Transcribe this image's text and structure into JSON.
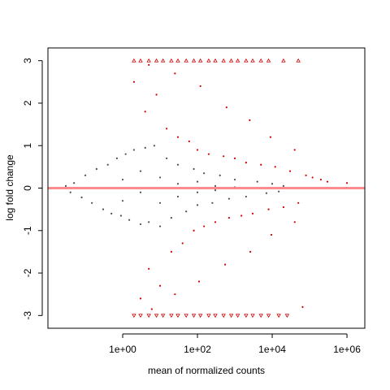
{
  "chart_data": {
    "type": "scatter",
    "title": "",
    "xlabel": "mean of normalized counts",
    "ylabel": "log fold change",
    "x_scale": "log10",
    "xlim": [
      0.01,
      3000000
    ],
    "ylim": [
      -3.3,
      3.3
    ],
    "x_ticks": [
      1,
      100,
      10000,
      1000000
    ],
    "x_tick_labels": [
      "1e+00",
      "1e+02",
      "1e+04",
      "1e+06"
    ],
    "y_ticks": [
      -3,
      -2,
      -1,
      0,
      1,
      2,
      3
    ],
    "y_tick_labels": [
      "-3",
      "-2",
      "-1",
      "0",
      "1",
      "2",
      "3"
    ],
    "grid": false,
    "legend": "none",
    "clip_value": 3,
    "reference_line": {
      "y": 0,
      "color": "#ff8080"
    },
    "colors": {
      "not_significant": "#4d4d4d",
      "significant": "#cc0000",
      "reference_line": "#ff8080"
    },
    "series": [
      {
        "group": "not_significant",
        "marker": "point",
        "points": [
          [
            0.03,
            0.05
          ],
          [
            0.04,
            -0.1
          ],
          [
            0.05,
            0.12
          ],
          [
            0.08,
            -0.22
          ],
          [
            0.1,
            0.3
          ],
          [
            0.15,
            -0.35
          ],
          [
            0.2,
            0.45
          ],
          [
            0.3,
            -0.5
          ],
          [
            0.4,
            0.55
          ],
          [
            0.5,
            -0.6
          ],
          [
            0.7,
            0.7
          ],
          [
            0.9,
            -0.65
          ],
          [
            1.2,
            0.8
          ],
          [
            1.5,
            -0.75
          ],
          [
            2,
            0.9
          ],
          [
            3,
            -0.85
          ],
          [
            4,
            0.95
          ],
          [
            5,
            -0.8
          ],
          [
            7,
            1.0
          ],
          [
            10,
            -0.9
          ],
          [
            15,
            0.7
          ],
          [
            20,
            -0.7
          ],
          [
            30,
            0.55
          ],
          [
            50,
            -0.55
          ],
          [
            80,
            0.45
          ],
          [
            100,
            -0.4
          ],
          [
            150,
            0.35
          ],
          [
            250,
            -0.35
          ],
          [
            400,
            0.3
          ],
          [
            700,
            -0.25
          ],
          [
            1000,
            0.2
          ],
          [
            2000,
            -0.2
          ],
          [
            4000,
            0.15
          ],
          [
            7000,
            -0.12
          ],
          [
            10000,
            0.1
          ],
          [
            15000,
            -0.08
          ],
          [
            20000,
            0.05
          ],
          [
            1,
            0.2
          ],
          [
            1,
            -0.3
          ],
          [
            3,
            0.4
          ],
          [
            3,
            -0.1
          ],
          [
            10,
            0.25
          ],
          [
            10,
            -0.35
          ],
          [
            30,
            0.1
          ],
          [
            30,
            -0.2
          ],
          [
            100,
            0.15
          ],
          [
            100,
            -0.1
          ],
          [
            300,
            0.05
          ],
          [
            300,
            -0.05
          ],
          [
            1000,
            0.02
          ]
        ]
      },
      {
        "group": "significant",
        "marker": "point",
        "points": [
          [
            2,
            2.5
          ],
          [
            3,
            -2.6
          ],
          [
            4,
            1.8
          ],
          [
            5,
            -1.9
          ],
          [
            8,
            2.2
          ],
          [
            10,
            -2.3
          ],
          [
            15,
            1.4
          ],
          [
            20,
            -1.5
          ],
          [
            30,
            1.2
          ],
          [
            40,
            -1.3
          ],
          [
            60,
            1.1
          ],
          [
            80,
            -1.0
          ],
          [
            100,
            0.9
          ],
          [
            150,
            -0.9
          ],
          [
            200,
            0.8
          ],
          [
            300,
            -0.8
          ],
          [
            500,
            0.75
          ],
          [
            700,
            -0.7
          ],
          [
            1000,
            0.7
          ],
          [
            1500,
            -0.65
          ],
          [
            2000,
            0.6
          ],
          [
            3000,
            -0.6
          ],
          [
            5000,
            0.55
          ],
          [
            8000,
            -0.5
          ],
          [
            12000,
            0.5
          ],
          [
            20000,
            -0.45
          ],
          [
            30000,
            0.4
          ],
          [
            50000,
            -0.35
          ],
          [
            80000,
            0.3
          ],
          [
            120000,
            0.25
          ],
          [
            200000,
            0.2
          ],
          [
            300000,
            0.15
          ],
          [
            1000000,
            0.12
          ],
          [
            5,
            2.9
          ],
          [
            25,
            2.7
          ],
          [
            120,
            2.4
          ],
          [
            600,
            1.9
          ],
          [
            2500,
            1.6
          ],
          [
            9000,
            1.2
          ],
          [
            40000,
            0.9
          ],
          [
            6,
            -2.85
          ],
          [
            25,
            -2.5
          ],
          [
            110,
            -2.2
          ],
          [
            550,
            -1.8
          ],
          [
            2600,
            -1.5
          ],
          [
            9500,
            -1.1
          ],
          [
            40000,
            -0.8
          ],
          [
            65000,
            -2.8
          ]
        ]
      },
      {
        "group": "significant",
        "marker": "triangle-up",
        "points": [
          [
            2,
            3
          ],
          [
            3,
            3
          ],
          [
            5,
            3
          ],
          [
            8,
            3
          ],
          [
            12,
            3
          ],
          [
            20,
            3
          ],
          [
            30,
            3
          ],
          [
            50,
            3
          ],
          [
            80,
            3
          ],
          [
            120,
            3
          ],
          [
            200,
            3
          ],
          [
            300,
            3
          ],
          [
            500,
            3
          ],
          [
            800,
            3
          ],
          [
            1200,
            3
          ],
          [
            2000,
            3
          ],
          [
            3000,
            3
          ],
          [
            5000,
            3
          ],
          [
            8000,
            3
          ],
          [
            20000,
            3
          ],
          [
            50000,
            3
          ]
        ]
      },
      {
        "group": "significant",
        "marker": "triangle-down",
        "points": [
          [
            2,
            -3
          ],
          [
            3,
            -3
          ],
          [
            5,
            -3
          ],
          [
            8,
            -3
          ],
          [
            12,
            -3
          ],
          [
            20,
            -3
          ],
          [
            30,
            -3
          ],
          [
            50,
            -3
          ],
          [
            80,
            -3
          ],
          [
            120,
            -3
          ],
          [
            200,
            -3
          ],
          [
            300,
            -3
          ],
          [
            500,
            -3
          ],
          [
            800,
            -3
          ],
          [
            1200,
            -3
          ],
          [
            2000,
            -3
          ],
          [
            3000,
            -3
          ],
          [
            5000,
            -3
          ],
          [
            8000,
            -3
          ],
          [
            15000,
            -3
          ],
          [
            25000,
            -3
          ]
        ]
      }
    ]
  }
}
